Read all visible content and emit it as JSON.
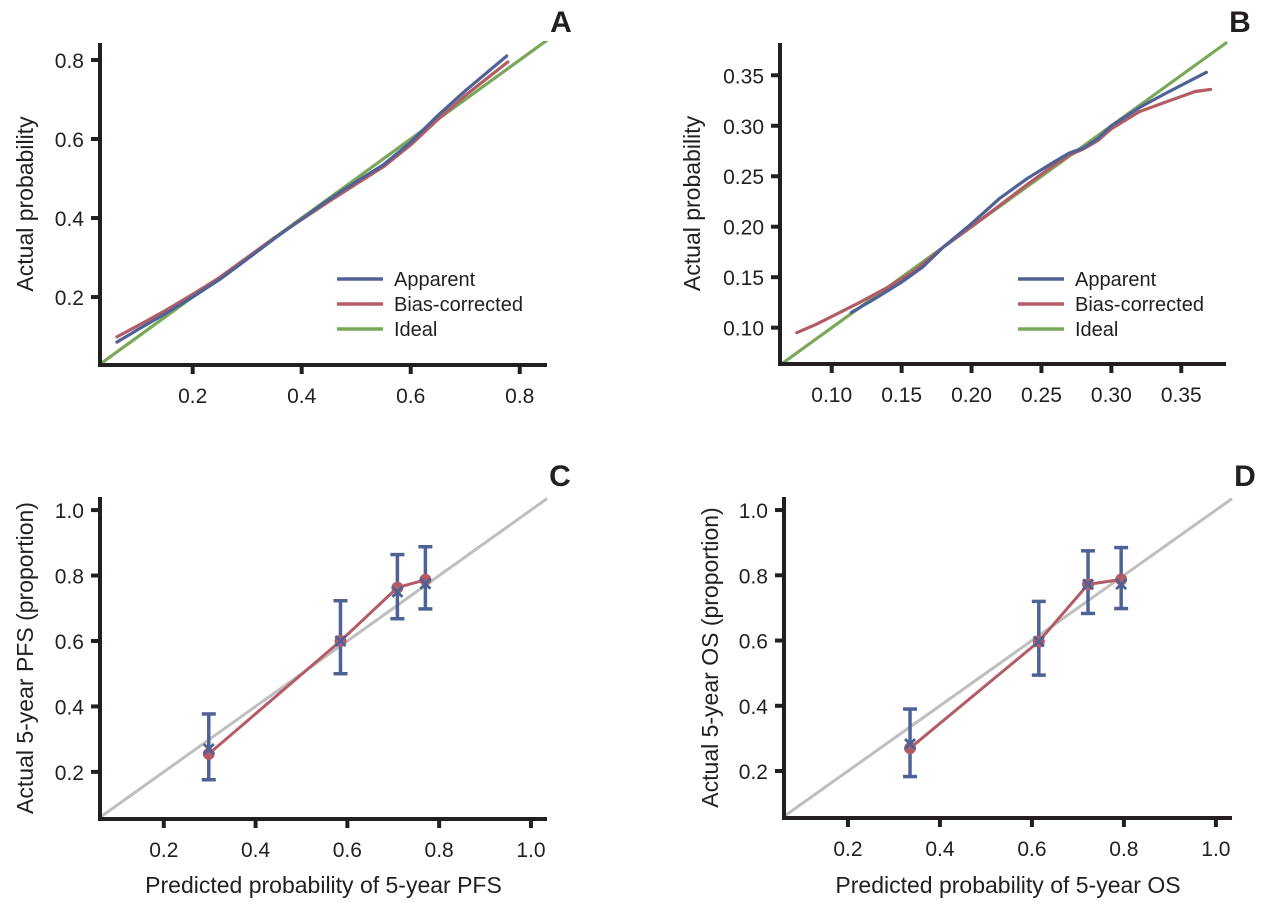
{
  "colors": {
    "apparent": "#4f6296",
    "bias_corrected": "#b45c66",
    "ideal": "#7aa859",
    "reference": "#bfbfbf",
    "axis": "#231f20"
  },
  "chart_data": [
    {
      "panel": "A",
      "type": "line",
      "title": "",
      "xlabel": "",
      "ylabel": "Actual probability",
      "xlim": [
        0.03,
        0.85
      ],
      "ylim": [
        0.028,
        0.843
      ],
      "xticks": [
        0.2,
        0.4,
        0.6,
        0.8
      ],
      "xtick_labels": [
        "0.2",
        "0.4",
        "0.6",
        "0.8"
      ],
      "yticks": [
        0.2,
        0.4,
        0.6,
        0.8
      ],
      "ytick_labels": [
        "0.2",
        "0.4",
        "0.6",
        "0.8"
      ],
      "grid": false,
      "legend": {
        "placement": "bottom-right",
        "entries": [
          "Apparent",
          "Bias-corrected",
          "Ideal"
        ]
      },
      "series": [
        {
          "name": "Apparent",
          "color_key": "apparent",
          "x": [
            0.061,
            0.1,
            0.15,
            0.2,
            0.25,
            0.3,
            0.35,
            0.4,
            0.45,
            0.5,
            0.55,
            0.6,
            0.65,
            0.7,
            0.776
          ],
          "y": [
            0.086,
            0.118,
            0.158,
            0.2,
            0.245,
            0.296,
            0.348,
            0.398,
            0.447,
            0.492,
            0.535,
            0.592,
            0.66,
            0.722,
            0.81
          ]
        },
        {
          "name": "Bias-corrected",
          "color_key": "bias_corrected",
          "x": [
            0.061,
            0.1,
            0.15,
            0.2,
            0.25,
            0.3,
            0.35,
            0.4,
            0.45,
            0.5,
            0.55,
            0.6,
            0.65,
            0.7,
            0.778
          ],
          "y": [
            0.099,
            0.128,
            0.166,
            0.207,
            0.25,
            0.3,
            0.35,
            0.396,
            0.442,
            0.486,
            0.53,
            0.585,
            0.65,
            0.71,
            0.795
          ]
        },
        {
          "name": "Ideal",
          "color_key": "ideal",
          "x": [
            0.03,
            0.85
          ],
          "y": [
            0.03,
            0.85
          ]
        }
      ]
    },
    {
      "panel": "B",
      "type": "line",
      "title": "",
      "xlabel": "",
      "ylabel": "Actual probability",
      "xlim": [
        0.063,
        0.382
      ],
      "ylim": [
        0.064,
        0.382
      ],
      "xticks": [
        0.1,
        0.15,
        0.2,
        0.25,
        0.3,
        0.35
      ],
      "xtick_labels": [
        "0.10",
        "0.15",
        "0.20",
        "0.25",
        "0.30",
        "0.35"
      ],
      "yticks": [
        0.1,
        0.15,
        0.2,
        0.25,
        0.3,
        0.35
      ],
      "ytick_labels": [
        "0.10",
        "0.15",
        "0.20",
        "0.25",
        "0.30",
        "0.35"
      ],
      "grid": false,
      "legend": {
        "placement": "bottom-right",
        "entries": [
          "Apparent",
          "Bias-corrected",
          "Ideal"
        ]
      },
      "series": [
        {
          "name": "Apparent",
          "color_key": "apparent",
          "x": [
            0.114,
            0.13,
            0.15,
            0.165,
            0.18,
            0.2,
            0.22,
            0.24,
            0.26,
            0.27,
            0.28,
            0.29,
            0.3,
            0.32,
            0.34,
            0.368
          ],
          "y": [
            0.115,
            0.128,
            0.145,
            0.16,
            0.18,
            0.203,
            0.228,
            0.248,
            0.265,
            0.273,
            0.278,
            0.287,
            0.3,
            0.318,
            0.333,
            0.353
          ]
        },
        {
          "name": "Bias-corrected",
          "color_key": "bias_corrected",
          "x": [
            0.075,
            0.09,
            0.1,
            0.12,
            0.14,
            0.16,
            0.18,
            0.2,
            0.22,
            0.24,
            0.26,
            0.27,
            0.28,
            0.29,
            0.3,
            0.32,
            0.34,
            0.36,
            0.371
          ],
          "y": [
            0.095,
            0.104,
            0.111,
            0.125,
            0.14,
            0.157,
            0.18,
            0.2,
            0.221,
            0.242,
            0.262,
            0.271,
            0.277,
            0.285,
            0.297,
            0.314,
            0.324,
            0.334,
            0.336
          ]
        },
        {
          "name": "Ideal",
          "color_key": "ideal",
          "x": [
            0.064,
            0.382
          ],
          "y": [
            0.064,
            0.382
          ]
        }
      ]
    },
    {
      "panel": "C",
      "type": "scatter",
      "title": "",
      "xlabel": "Predicted probability of 5-year PFS",
      "ylabel": "Actual 5-year PFS (proportion)",
      "xlim": [
        0.061,
        1.035
      ],
      "ylim": [
        0.056,
        1.04
      ],
      "xticks": [
        0.2,
        0.4,
        0.6,
        0.8,
        1.0
      ],
      "xtick_labels": [
        "0.2",
        "0.4",
        "0.6",
        "0.8",
        "1.0"
      ],
      "yticks": [
        0.2,
        0.4,
        0.6,
        0.8,
        1.0
      ],
      "ytick_labels": [
        "0.2",
        "0.4",
        "0.6",
        "0.8",
        "1.0"
      ],
      "grid": false,
      "reference_line": {
        "x": [
          0.061,
          1.035
        ],
        "y": [
          0.061,
          1.035
        ]
      },
      "observed": {
        "x": [
          0.298,
          0.585,
          0.709,
          0.77
        ],
        "y": [
          0.27,
          0.6,
          0.75,
          0.775
        ],
        "ci_lower": [
          0.176,
          0.5,
          0.668,
          0.698
        ],
        "ci_upper": [
          0.377,
          0.723,
          0.864,
          0.888
        ]
      },
      "bias_corrected": {
        "x": [
          0.298,
          0.585,
          0.709,
          0.77
        ],
        "y": [
          0.255,
          0.6,
          0.763,
          0.787
        ]
      }
    },
    {
      "panel": "D",
      "type": "scatter",
      "title": "",
      "xlabel": "Predicted probability of 5-year OS",
      "ylabel": "Actual 5-year OS (proportion)",
      "xlim": [
        0.061,
        1.035
      ],
      "ylim": [
        0.056,
        1.04
      ],
      "xticks": [
        0.2,
        0.4,
        0.6,
        0.8,
        1.0
      ],
      "xtick_labels": [
        "0.2",
        "0.4",
        "0.6",
        "0.8",
        "1.0"
      ],
      "yticks": [
        0.2,
        0.4,
        0.6,
        0.8,
        1.0
      ],
      "ytick_labels": [
        "0.2",
        "0.4",
        "0.6",
        "0.8",
        "1.0"
      ],
      "grid": false,
      "reference_line": {
        "x": [
          0.061,
          1.035
        ],
        "y": [
          0.061,
          1.035
        ]
      },
      "observed": {
        "x": [
          0.335,
          0.615,
          0.722,
          0.794
        ],
        "y": [
          0.283,
          0.597,
          0.772,
          0.773
        ],
        "ci_lower": [
          0.183,
          0.494,
          0.683,
          0.698
        ],
        "ci_upper": [
          0.39,
          0.72,
          0.875,
          0.885
        ]
      },
      "bias_corrected": {
        "x": [
          0.335,
          0.615,
          0.722,
          0.794
        ],
        "y": [
          0.27,
          0.597,
          0.772,
          0.787
        ]
      }
    }
  ]
}
